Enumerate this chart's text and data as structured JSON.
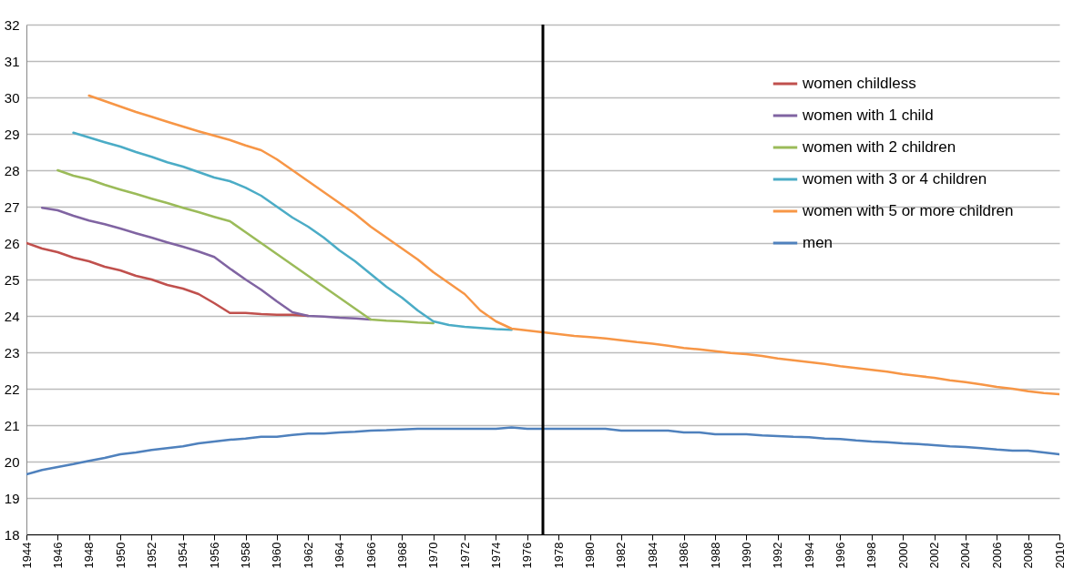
{
  "chart_data": {
    "type": "line",
    "xlim": [
      1944,
      2010
    ],
    "xticks": [
      1944,
      1946,
      1948,
      1950,
      1952,
      1954,
      1956,
      1958,
      1960,
      1962,
      1964,
      1966,
      1968,
      1970,
      1972,
      1974,
      1976,
      1978,
      1980,
      1982,
      1984,
      1986,
      1988,
      1990,
      1992,
      1994,
      1996,
      1998,
      2000,
      2002,
      2004,
      2006,
      2008,
      2010
    ],
    "ylim": [
      18,
      32
    ],
    "yticks": [
      18,
      19,
      20,
      21,
      22,
      23,
      24,
      25,
      26,
      27,
      28,
      29,
      30,
      31,
      32
    ],
    "grid": "y",
    "legend": "top right",
    "line_style": "solid",
    "ref_lines": [
      {
        "axis": "x",
        "value": 1977,
        "color": "#000000"
      }
    ],
    "series": [
      {
        "name": "women childless",
        "color": "#c0504d",
        "x": [
          1944,
          1945,
          1946,
          1947,
          1948,
          1949,
          1950,
          1951,
          1952,
          1953,
          1954,
          1955,
          1956,
          1957,
          1958,
          1959,
          1960,
          1961,
          1962
        ],
        "values": [
          26.0,
          25.85,
          25.75,
          25.6,
          25.5,
          25.35,
          25.25,
          25.1,
          25.0,
          24.85,
          24.75,
          24.6,
          24.35,
          24.08,
          24.08,
          24.05,
          24.03,
          24.03,
          24.0
        ]
      },
      {
        "name": "women with 1 child",
        "color": "#8064a2",
        "x": [
          1945,
          1946,
          1947,
          1948,
          1949,
          1950,
          1951,
          1952,
          1953,
          1954,
          1955,
          1956,
          1957,
          1958,
          1959,
          1960,
          1961,
          1962,
          1963,
          1964,
          1965,
          1966
        ],
        "values": [
          26.97,
          26.9,
          26.75,
          26.62,
          26.52,
          26.4,
          26.27,
          26.15,
          26.02,
          25.9,
          25.77,
          25.62,
          25.3,
          25.0,
          24.72,
          24.4,
          24.1,
          24.0,
          23.98,
          23.95,
          23.93,
          23.9
        ]
      },
      {
        "name": "women with 2 children",
        "color": "#9bbb59",
        "x": [
          1946,
          1947,
          1948,
          1949,
          1950,
          1951,
          1952,
          1953,
          1954,
          1955,
          1956,
          1957,
          1958,
          1959,
          1960,
          1961,
          1962,
          1963,
          1964,
          1965,
          1966,
          1967,
          1968,
          1969,
          1970
        ],
        "values": [
          28.0,
          27.85,
          27.75,
          27.6,
          27.47,
          27.35,
          27.22,
          27.1,
          26.97,
          26.85,
          26.72,
          26.6,
          26.3,
          26.0,
          25.7,
          25.4,
          25.1,
          24.8,
          24.5,
          24.2,
          23.9,
          23.87,
          23.85,
          23.82,
          23.8
        ]
      },
      {
        "name": "women with 3 or 4 children",
        "color": "#4bacc6",
        "x": [
          1947,
          1948,
          1949,
          1950,
          1951,
          1952,
          1953,
          1954,
          1955,
          1956,
          1957,
          1958,
          1959,
          1960,
          1961,
          1962,
          1963,
          1964,
          1965,
          1966,
          1967,
          1968,
          1969,
          1970,
          1971,
          1972,
          1973,
          1974,
          1975
        ],
        "values": [
          29.03,
          28.9,
          28.77,
          28.65,
          28.5,
          28.37,
          28.22,
          28.1,
          27.95,
          27.8,
          27.7,
          27.52,
          27.3,
          27.0,
          26.7,
          26.45,
          26.15,
          25.8,
          25.5,
          25.15,
          24.8,
          24.5,
          24.15,
          23.85,
          23.75,
          23.7,
          23.67,
          23.64,
          23.62
        ]
      },
      {
        "name": "women with 5 or more children",
        "color": "#f79646",
        "x": [
          1948,
          1949,
          1950,
          1951,
          1952,
          1953,
          1954,
          1955,
          1956,
          1957,
          1958,
          1959,
          1960,
          1961,
          1962,
          1963,
          1964,
          1965,
          1966,
          1967,
          1968,
          1969,
          1970,
          1971,
          1972,
          1973,
          1974,
          1975,
          1976,
          1977,
          1978,
          1979,
          1980,
          1981,
          1982,
          1983,
          1984,
          1985,
          1986,
          1987,
          1988,
          1989,
          1990,
          1991,
          1992,
          1993,
          1994,
          1995,
          1996,
          1997,
          1998,
          1999,
          2000,
          2001,
          2002,
          2003,
          2004,
          2005,
          2006,
          2007,
          2008,
          2009,
          2010
        ],
        "values": [
          30.05,
          29.9,
          29.75,
          29.6,
          29.47,
          29.33,
          29.2,
          29.07,
          28.95,
          28.83,
          28.68,
          28.55,
          28.3,
          28.0,
          27.7,
          27.4,
          27.1,
          26.8,
          26.45,
          26.15,
          25.85,
          25.55,
          25.2,
          24.9,
          24.6,
          24.15,
          23.85,
          23.65,
          23.6,
          23.55,
          23.5,
          23.45,
          23.42,
          23.38,
          23.33,
          23.28,
          23.24,
          23.18,
          23.12,
          23.08,
          23.03,
          22.98,
          22.95,
          22.9,
          22.83,
          22.78,
          22.73,
          22.68,
          22.62,
          22.57,
          22.52,
          22.47,
          22.4,
          22.35,
          22.3,
          22.23,
          22.18,
          22.12,
          22.05,
          22.0,
          21.93,
          21.88,
          21.85
        ]
      },
      {
        "name": "men",
        "color": "#4f81bd",
        "x": [
          1944,
          1945,
          1946,
          1947,
          1948,
          1949,
          1950,
          1951,
          1952,
          1953,
          1954,
          1955,
          1956,
          1957,
          1958,
          1959,
          1960,
          1961,
          1962,
          1963,
          1964,
          1965,
          1966,
          1967,
          1968,
          1969,
          1970,
          1971,
          1972,
          1973,
          1974,
          1975,
          1976,
          1977,
          1978,
          1979,
          1980,
          1981,
          1982,
          1983,
          1984,
          1985,
          1986,
          1987,
          1988,
          1989,
          1990,
          1991,
          1992,
          1993,
          1994,
          1995,
          1996,
          1997,
          1998,
          1999,
          2000,
          2001,
          2002,
          2003,
          2004,
          2005,
          2006,
          2007,
          2008,
          2009,
          2010
        ],
        "values": [
          19.65,
          19.77,
          19.85,
          19.93,
          20.02,
          20.1,
          20.2,
          20.25,
          20.32,
          20.37,
          20.42,
          20.5,
          20.55,
          20.6,
          20.63,
          20.68,
          20.68,
          20.73,
          20.77,
          20.77,
          20.8,
          20.82,
          20.85,
          20.86,
          20.88,
          20.9,
          20.9,
          20.9,
          20.9,
          20.9,
          20.9,
          20.94,
          20.9,
          20.9,
          20.9,
          20.9,
          20.9,
          20.9,
          20.85,
          20.85,
          20.85,
          20.85,
          20.8,
          20.8,
          20.75,
          20.75,
          20.75,
          20.72,
          20.7,
          20.68,
          20.67,
          20.63,
          20.62,
          20.58,
          20.55,
          20.53,
          20.5,
          20.48,
          20.45,
          20.42,
          20.4,
          20.37,
          20.33,
          20.3,
          20.3,
          20.25,
          20.2
        ]
      }
    ]
  }
}
